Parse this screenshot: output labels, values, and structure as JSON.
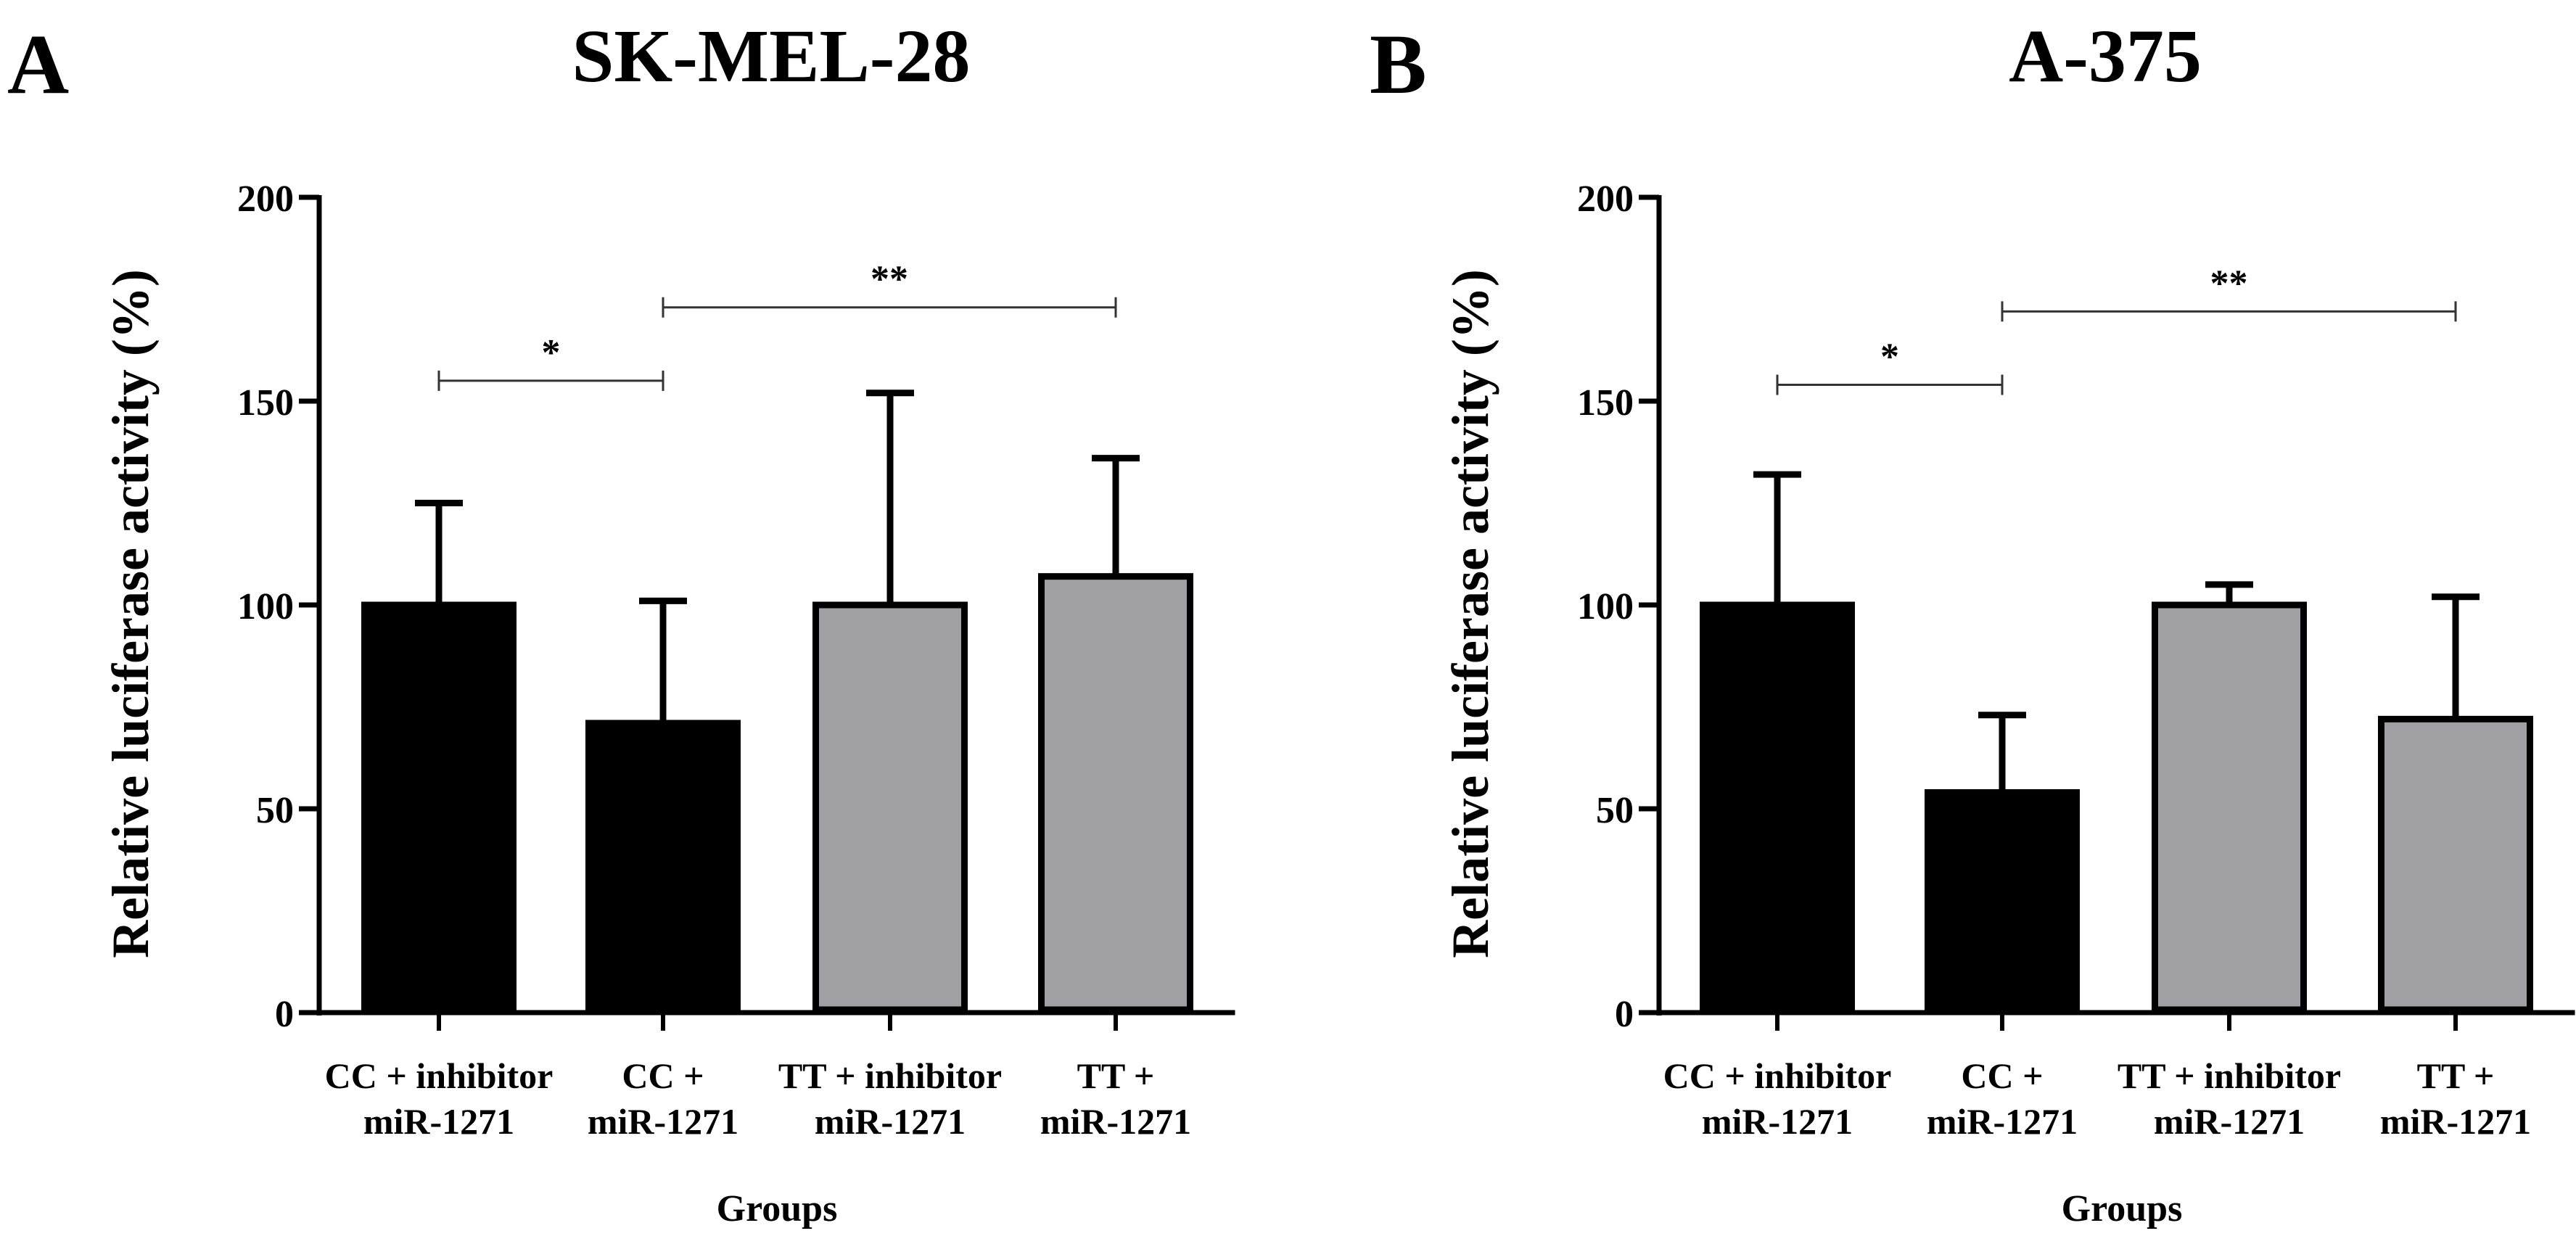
{
  "figure": {
    "panels": [
      "A",
      "B"
    ]
  },
  "chart_data": [
    {
      "panel_label": "A",
      "type": "bar",
      "title": "SK-MEL-28",
      "xlabel": "Groups",
      "ylabel": "Relative luciferase activity (%)",
      "ylim": [
        0,
        200
      ],
      "yticks": [
        0,
        50,
        100,
        150,
        200
      ],
      "categories": [
        [
          "CC + inhibitor",
          "miR-1271"
        ],
        [
          "CC +",
          "miR-1271"
        ],
        [
          "TT + inhibitor",
          "miR-1271"
        ],
        [
          "TT +",
          "miR-1271"
        ]
      ],
      "values": [
        100,
        71,
        100,
        107
      ],
      "errors": [
        25,
        30,
        52,
        29
      ],
      "bar_colors": [
        "#000000",
        "#000000",
        "#a09fa4",
        "#a09fa4"
      ],
      "significance": [
        {
          "from": 0,
          "to": 1,
          "y": 155,
          "label": "*"
        },
        {
          "from": 1,
          "to": 3,
          "y": 173,
          "label": "**"
        }
      ]
    },
    {
      "panel_label": "B",
      "type": "bar",
      "title": "A-375",
      "xlabel": "Groups",
      "ylabel": "Relative luciferase activity (%)",
      "ylim": [
        0,
        200
      ],
      "yticks": [
        0,
        50,
        100,
        150,
        200
      ],
      "categories": [
        [
          "CC + inhibitor",
          "miR-1271"
        ],
        [
          "CC +",
          "miR-1271"
        ],
        [
          "TT + inhibitor",
          "miR-1271"
        ],
        [
          "TT +",
          "miR-1271"
        ]
      ],
      "values": [
        100,
        54,
        100,
        72
      ],
      "errors": [
        32,
        19,
        5,
        30
      ],
      "bar_colors": [
        "#000000",
        "#000000",
        "#a09fa4",
        "#a09fa4"
      ],
      "significance": [
        {
          "from": 0,
          "to": 1,
          "y": 154,
          "label": "*"
        },
        {
          "from": 1,
          "to": 3,
          "y": 172,
          "label": "**"
        }
      ]
    }
  ]
}
